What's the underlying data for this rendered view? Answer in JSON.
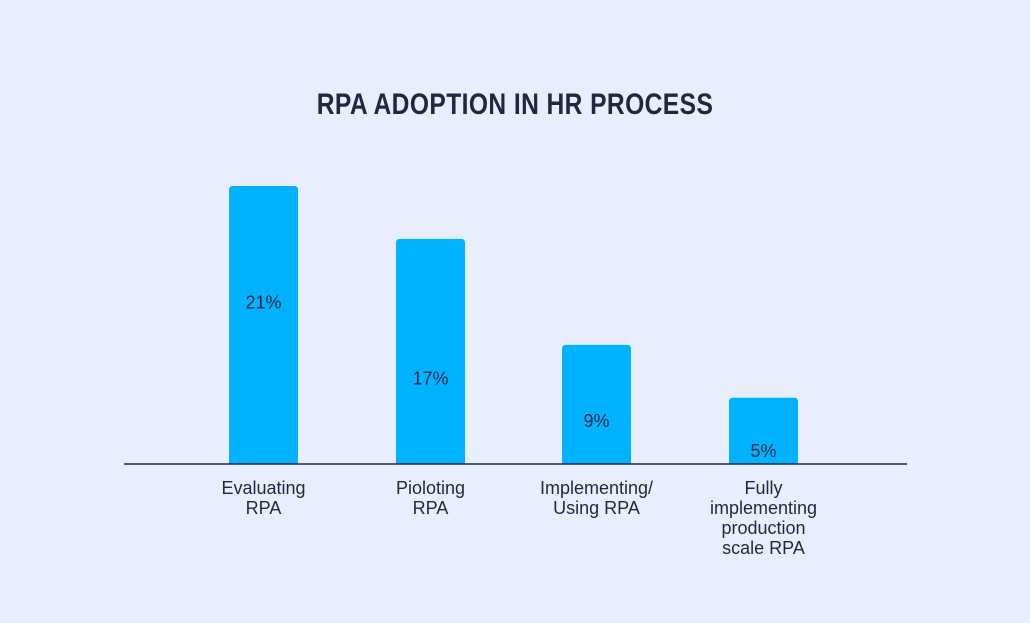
{
  "chart_data": {
    "type": "bar",
    "title": "RPA ADOPTION IN HR PROCESS",
    "xlabel": "",
    "ylabel": "",
    "categories": [
      [
        "Evaluating",
        "RPA"
      ],
      [
        "Pioloting",
        "RPA"
      ],
      [
        "Implementing/",
        "Using RPA"
      ],
      [
        "Fully",
        "implementing",
        "production",
        "scale RPA"
      ]
    ],
    "values": [
      21,
      17,
      9,
      5
    ],
    "value_labels": [
      "21%",
      "17%",
      "9%",
      "5%"
    ],
    "bar_color": "#00b2ff",
    "axis_color": "#1f2840",
    "grid": false
  }
}
